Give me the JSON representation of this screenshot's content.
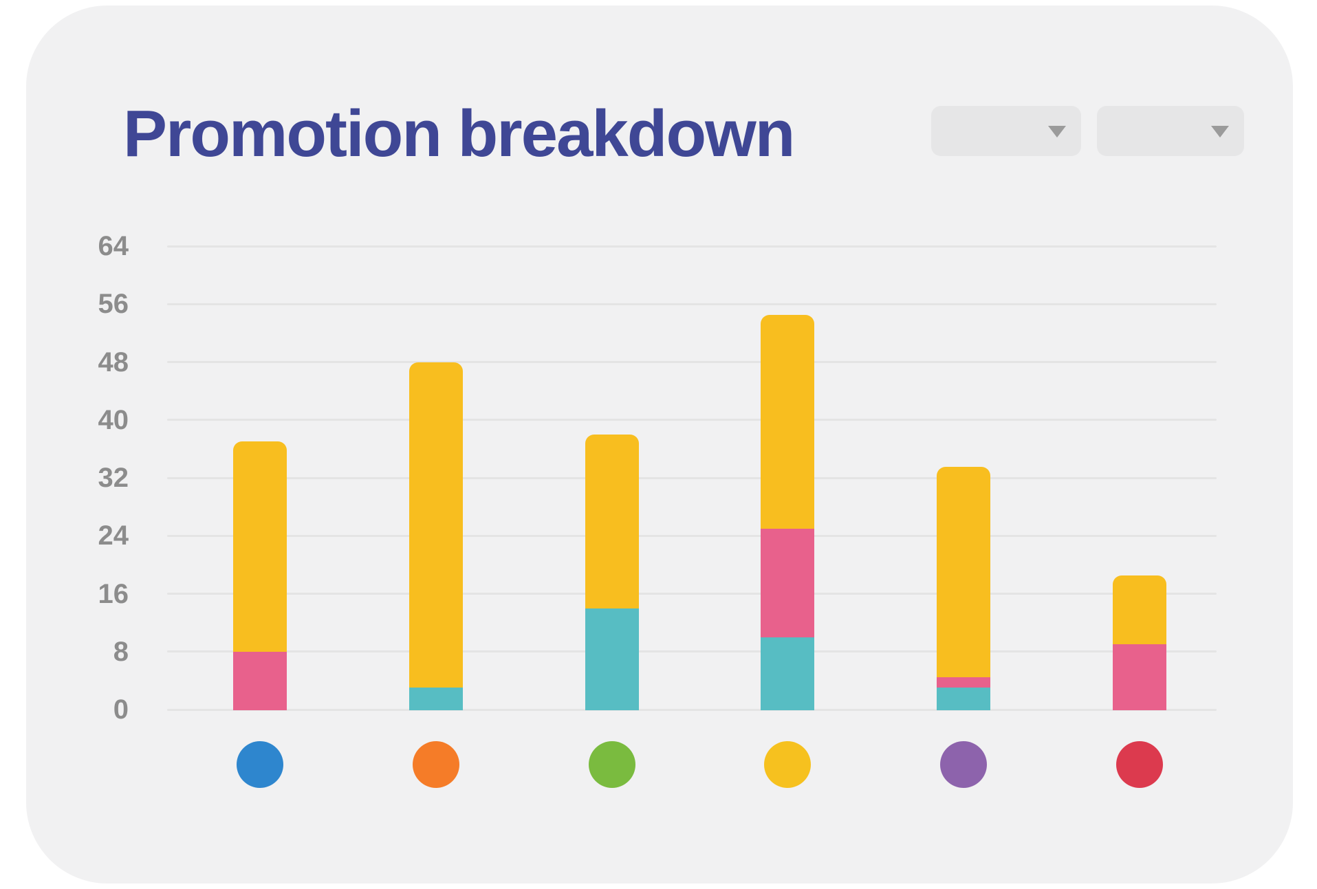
{
  "header": {
    "title": "Promotion breakdown"
  },
  "toolbar": {
    "dropdowns": [
      {
        "value": "",
        "icon": "chevron-down"
      },
      {
        "value": "",
        "icon": "chevron-down"
      }
    ]
  },
  "palette": {
    "card_background": "#F1F1F2",
    "title_text": "#3F4795",
    "axis_label": "#8C8C8C",
    "gridline": "#E4E4E4",
    "dropdown_fill": "#E6E6E7",
    "dropdown_caret": "#9B9B9B"
  },
  "chart_data": {
    "type": "bar",
    "stacked": true,
    "title": "Promotion breakdown",
    "xlabel": "",
    "ylabel": "",
    "ylim": [
      0,
      64
    ],
    "yticks": [
      0,
      8,
      16,
      24,
      32,
      40,
      48,
      56,
      64
    ],
    "grid": "horizontal gridlines only",
    "legend": "none (categories shown as colored dots under bars)",
    "categories": [
      "blue",
      "orange",
      "green",
      "yellow",
      "purple",
      "red"
    ],
    "category_markers": [
      {
        "label": "blue",
        "color": "#2E86CE"
      },
      {
        "label": "orange",
        "color": "#F57C28"
      },
      {
        "label": "green",
        "color": "#7ABB3F"
      },
      {
        "label": "yellow",
        "color": "#F6C11F"
      },
      {
        "label": "purple",
        "color": "#8D63AC"
      },
      {
        "label": "red",
        "color": "#DC3A4E"
      }
    ],
    "series": [
      {
        "name": "teal",
        "color": "#57BDC3",
        "values": [
          0,
          3,
          14,
          10,
          3,
          0
        ]
      },
      {
        "name": "pink",
        "color": "#E8618C",
        "values": [
          8,
          0,
          0,
          15,
          1.5,
          9
        ]
      },
      {
        "name": "yellow",
        "color": "#F8BE1F",
        "values": [
          29,
          45,
          24,
          29.5,
          29,
          9.5
        ]
      }
    ],
    "totals": [
      37,
      48,
      38,
      54.5,
      33.5,
      18.5
    ]
  }
}
